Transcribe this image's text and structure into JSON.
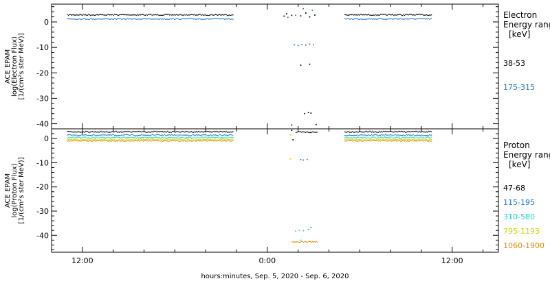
{
  "chart_data": [
    {
      "type": "scatter",
      "panel": "electron",
      "ylabel_lines": [
        "ACE EPAM",
        "log(Electron Flux)",
        "[1/(cm²s ster MeV)]"
      ],
      "ylim": [
        -42,
        7
      ],
      "yticks": [
        0,
        -10,
        -20,
        -30,
        -40
      ],
      "legend": {
        "title_lines": [
          "Electron",
          "Energy range",
          "[keV]"
        ],
        "placement": "right"
      },
      "series": [
        {
          "name": "38-53",
          "color": "#000000",
          "segments": [
            {
              "x_range": [
                "2020-09-05T11:00",
                "2020-09-05T21:45"
              ],
              "y": 2.8
            },
            {
              "x_range": [
                "2020-09-06T05:00",
                "2020-09-06T10:40"
              ],
              "y": 2.8
            }
          ],
          "points": [
            {
              "x": "2020-09-06T01:05",
              "y": 2.3
            },
            {
              "x": "2020-09-06T01:15",
              "y": 3.2
            },
            {
              "x": "2020-09-06T01:35",
              "y": 2.6
            },
            {
              "x": "2020-09-06T02:10",
              "y": 2.4
            },
            {
              "x": "2020-09-06T02:30",
              "y": 3.5
            },
            {
              "x": "2020-09-06T02:45",
              "y": 2.0
            },
            {
              "x": "2020-09-06T03:05",
              "y": 2.7
            },
            {
              "x": "2020-09-06T02:10",
              "y": -17
            },
            {
              "x": "2020-09-06T02:45",
              "y": -16.6
            },
            {
              "x": "2020-09-06T02:25",
              "y": -36
            },
            {
              "x": "2020-09-06T02:50",
              "y": -35.8
            },
            {
              "x": "2020-09-06T01:35",
              "y": -40.5
            },
            {
              "x": "2020-09-06T03:10",
              "y": -40.3
            },
            {
              "x": "2020-09-06T02:40",
              "y": -35.6
            }
          ]
        },
        {
          "name": "175-315",
          "color": "#1f78d2",
          "segments": [
            {
              "x_range": [
                "2020-09-05T11:00",
                "2020-09-05T21:45"
              ],
              "y": 1.2
            },
            {
              "x_range": [
                "2020-09-06T05:00",
                "2020-09-06T10:40"
              ],
              "y": 1.2
            }
          ],
          "points": [
            {
              "x": "2020-09-06T01:20",
              "y": 1.8
            },
            {
              "x": "2020-09-06T01:50",
              "y": 2.6
            },
            {
              "x": "2020-09-06T02:20",
              "y": 5.2
            },
            {
              "x": "2020-09-06T02:55",
              "y": 4.6
            },
            {
              "x": "2020-09-06T01:45",
              "y": -9
            },
            {
              "x": "2020-09-06T02:00",
              "y": -9.3
            },
            {
              "x": "2020-09-06T02:15",
              "y": -8.8
            },
            {
              "x": "2020-09-06T02:30",
              "y": -9.1
            },
            {
              "x": "2020-09-06T02:45",
              "y": -8.7
            },
            {
              "x": "2020-09-06T03:00",
              "y": -9.0
            }
          ]
        }
      ]
    },
    {
      "type": "scatter",
      "panel": "proton",
      "ylabel_lines": [
        "ACE EPAM",
        "log(Proton Flux)",
        "[1/(cm²s ster MeV)]"
      ],
      "ylim": [
        -47,
        4
      ],
      "yticks": [
        0,
        -10,
        -20,
        -30,
        -40
      ],
      "legend": {
        "title_lines": [
          "Proton",
          "Energy range",
          "[keV]"
        ],
        "placement": "right"
      },
      "series": [
        {
          "name": "47-68",
          "color": "#000000",
          "segments": [
            {
              "x_range": [
                "2020-09-05T11:00",
                "2020-09-05T21:45"
              ],
              "y": 2.8
            },
            {
              "x_range": [
                "2020-09-06T01:50",
                "2020-09-06T03:15"
              ],
              "y": 2.6
            },
            {
              "x_range": [
                "2020-09-06T05:00",
                "2020-09-06T10:40"
              ],
              "y": 2.8
            }
          ],
          "points": [
            {
              "x": "2020-09-06T01:35",
              "y": 3.4
            },
            {
              "x": "2020-09-06T01:40",
              "y": -0.5
            }
          ]
        },
        {
          "name": "115-195",
          "color": "#1f78d2",
          "segments": [
            {
              "x_range": [
                "2020-09-05T11:00",
                "2020-09-05T21:45"
              ],
              "y": 1.4
            },
            {
              "x_range": [
                "2020-09-06T05:00",
                "2020-09-06T10:40"
              ],
              "y": 1.4
            }
          ],
          "points": [
            {
              "x": "2020-09-06T02:10",
              "y": -8.7
            },
            {
              "x": "2020-09-06T02:20",
              "y": -8.9
            },
            {
              "x": "2020-09-06T02:35",
              "y": -8.6
            },
            {
              "x": "2020-09-06T02:50",
              "y": -36.7
            }
          ]
        },
        {
          "name": "310-580",
          "color": "#22d3d3",
          "segments": [
            {
              "x_range": [
                "2020-09-05T11:00",
                "2020-09-05T21:45"
              ],
              "y": 0.4
            },
            {
              "x_range": [
                "2020-09-06T05:00",
                "2020-09-06T10:40"
              ],
              "y": 0.4
            }
          ],
          "points": [
            {
              "x": "2020-09-06T01:50",
              "y": -38.2
            },
            {
              "x": "2020-09-06T02:05",
              "y": -37.9
            },
            {
              "x": "2020-09-06T02:20",
              "y": -38.1
            },
            {
              "x": "2020-09-06T02:40",
              "y": -37.6
            },
            {
              "x": "2020-09-06T02:10",
              "y": -42.0
            }
          ]
        },
        {
          "name": "795-1193",
          "color": "#d4d400",
          "segments": [
            {
              "x_range": [
                "2020-09-05T11:00",
                "2020-09-05T21:45"
              ],
              "y": -0.4
            },
            {
              "x_range": [
                "2020-09-06T05:00",
                "2020-09-06T10:40"
              ],
              "y": -0.4
            }
          ],
          "points": [
            {
              "x": "2020-09-06T01:30",
              "y": 1.5
            },
            {
              "x": "2020-09-06T01:30",
              "y": -8.4
            }
          ]
        },
        {
          "name": "1060-1900",
          "color": "#e68a00",
          "segments": [
            {
              "x_range": [
                "2020-09-05T11:00",
                "2020-09-05T21:45"
              ],
              "y": -0.9
            },
            {
              "x_range": [
                "2020-09-06T05:00",
                "2020-09-06T10:40"
              ],
              "y": -0.9
            },
            {
              "x_range": [
                "2020-09-06T01:35",
                "2020-09-06T03:15"
              ],
              "y": -42.7
            }
          ],
          "points": []
        }
      ]
    }
  ],
  "x_axis": {
    "range": [
      "2020-09-05T10:00",
      "2020-09-06T15:00"
    ],
    "major_ticks": [
      {
        "at": "2020-09-05T12:00",
        "label": "12:00"
      },
      {
        "at": "2020-09-06T00:00",
        "label": "0:00"
      },
      {
        "at": "2020-09-06T12:00",
        "label": "12:00"
      }
    ],
    "minor_tick_hours": 2,
    "xlabel": "hours:minutes, Sep.  5, 2020 - Sep.  6, 2020"
  },
  "colors": {
    "background": "#ffffff",
    "axes": "#000000"
  }
}
